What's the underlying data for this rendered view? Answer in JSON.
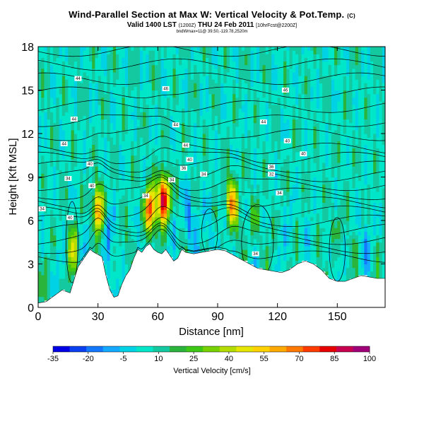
{
  "title": {
    "main": "Wind-Parallel Section at Max W: Vertical Velocity & Pot.Temp.",
    "main_suffix": "(C)",
    "valid": "Valid 1400 LST",
    "valid_note1": "(1200Z)",
    "valid_date": "THU 24 Feb 2011",
    "valid_note2": "[10hrFcst@2200Z]",
    "note": "bndWmax=11@ 39.50,-119.78,2520m"
  },
  "chart_data": {
    "type": "heatmap",
    "xlabel": "Distance [nm]",
    "ylabel": "Height [Kft MSL]",
    "xlim": [
      0,
      174
    ],
    "ylim": [
      0,
      18
    ],
    "xticks": [
      0,
      30,
      60,
      90,
      120,
      150
    ],
    "yticks": [
      0,
      3,
      6,
      9,
      12,
      15,
      18
    ],
    "colorbar": {
      "title": "Vertical Velocity [cm/s]",
      "ticks": [
        -35,
        -20,
        -5,
        10,
        25,
        40,
        55,
        70,
        85,
        100
      ],
      "range": [
        -35,
        100
      ],
      "colors": [
        "#0000e6",
        "#0a40f0",
        "#1478ff",
        "#14a8ff",
        "#00d2e6",
        "#00e6c8",
        "#14c8a0",
        "#2ab43c",
        "#3cc814",
        "#78d200",
        "#b4dc00",
        "#e6e600",
        "#ffd200",
        "#ffaa00",
        "#ff7800",
        "#ff3c00",
        "#e60000",
        "#c80050",
        "#a00078"
      ]
    },
    "terrain_profile": {
      "x": [
        0,
        4,
        8,
        12,
        16,
        20,
        24,
        26,
        28,
        32,
        34,
        36,
        38,
        40,
        42,
        44,
        46,
        48,
        50,
        52,
        54,
        56,
        58,
        60,
        62,
        64,
        66,
        68,
        70,
        72,
        74,
        78,
        82,
        86,
        90,
        94,
        98,
        102,
        106,
        110,
        114,
        118,
        122,
        126,
        130,
        134,
        138,
        142,
        146,
        150,
        154,
        158,
        162,
        166,
        170,
        174
      ],
      "y": [
        0.3,
        0.4,
        0.8,
        1.2,
        1.0,
        2.8,
        3.6,
        4.0,
        3.8,
        3.5,
        2.2,
        1.2,
        0.7,
        0.8,
        1.6,
        2.2,
        2.6,
        3.4,
        4.0,
        3.8,
        4.2,
        4.4,
        4.0,
        3.8,
        3.7,
        4.0,
        3.6,
        3.2,
        3.4,
        4.0,
        3.8,
        3.7,
        3.8,
        3.9,
        4.0,
        3.9,
        3.6,
        3.3,
        3.0,
        2.7,
        2.6,
        2.5,
        2.4,
        2.6,
        3.0,
        3.2,
        3.0,
        2.6,
        2.0,
        1.8,
        1.8,
        2.0,
        2.2,
        2.1,
        2.0,
        2.0
      ]
    },
    "w_maxima": [
      {
        "x": 17,
        "y": 4.0,
        "w": 30
      },
      {
        "x": 30,
        "y": 6.8,
        "w": 55
      },
      {
        "x": 56,
        "y": 6.8,
        "w": 70
      },
      {
        "x": 63,
        "y": 7.5,
        "w": 90
      },
      {
        "x": 97,
        "y": 7.2,
        "w": 60
      },
      {
        "x": 108,
        "y": 6.0,
        "w": 15
      },
      {
        "x": 150,
        "y": 5.5,
        "w": 12
      }
    ],
    "w_minima": [
      {
        "x": 35,
        "y": 5.0,
        "w": -20
      },
      {
        "x": 75,
        "y": 6.0,
        "w": -25
      },
      {
        "x": 86,
        "y": 5.5,
        "w": -15
      },
      {
        "x": 128,
        "y": 5.5,
        "w": -10
      },
      {
        "x": 165,
        "y": 5.0,
        "w": -10
      }
    ],
    "contour_labels": [
      {
        "x": 20,
        "y": 15.8,
        "text": "44"
      },
      {
        "x": 18,
        "y": 13.0,
        "text": "44"
      },
      {
        "x": 13,
        "y": 11.3,
        "text": "44"
      },
      {
        "x": 26,
        "y": 9.9,
        "text": "40"
      },
      {
        "x": 15,
        "y": 8.9,
        "text": "34"
      },
      {
        "x": 27,
        "y": 8.4,
        "text": "40"
      },
      {
        "x": 2,
        "y": 6.8,
        "text": "34"
      },
      {
        "x": 16,
        "y": 6.2,
        "text": "40"
      },
      {
        "x": 64,
        "y": 15.1,
        "text": "46"
      },
      {
        "x": 69,
        "y": 12.6,
        "text": "44"
      },
      {
        "x": 74,
        "y": 11.2,
        "text": "44"
      },
      {
        "x": 76,
        "y": 10.2,
        "text": "40"
      },
      {
        "x": 73,
        "y": 9.6,
        "text": "36"
      },
      {
        "x": 83,
        "y": 9.2,
        "text": "34"
      },
      {
        "x": 54,
        "y": 7.7,
        "text": "34"
      },
      {
        "x": 67,
        "y": 8.8,
        "text": "34"
      },
      {
        "x": 113,
        "y": 12.8,
        "text": "44"
      },
      {
        "x": 125,
        "y": 11.5,
        "text": "40"
      },
      {
        "x": 133,
        "y": 10.6,
        "text": "40"
      },
      {
        "x": 117,
        "y": 9.7,
        "text": "36"
      },
      {
        "x": 117,
        "y": 9.2,
        "text": "32"
      },
      {
        "x": 121,
        "y": 7.9,
        "text": "34"
      },
      {
        "x": 124,
        "y": 15.0,
        "text": "46"
      },
      {
        "x": 109,
        "y": 3.7,
        "text": "34"
      }
    ]
  }
}
